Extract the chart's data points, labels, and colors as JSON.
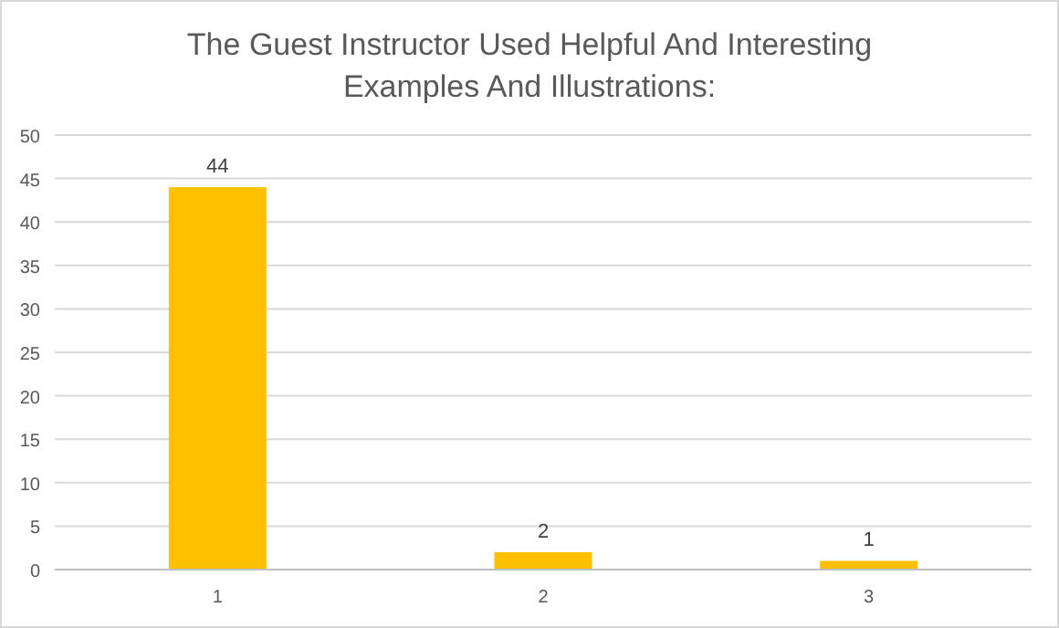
{
  "chart_data": {
    "type": "bar",
    "title": "The Guest Instructor Used Helpful And Interesting Examples And Illustrations:",
    "categories": [
      "1",
      "2",
      "3"
    ],
    "values": [
      44,
      2,
      1
    ],
    "color": "#ffc000",
    "ylim": [
      0,
      50
    ],
    "yticks": [
      0,
      5,
      10,
      15,
      20,
      25,
      30,
      35,
      40,
      45,
      50
    ],
    "grid": "y",
    "data_labels": true
  }
}
